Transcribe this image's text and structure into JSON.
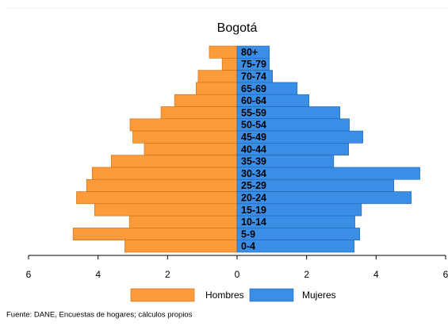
{
  "chart_data": {
    "type": "pyramid",
    "title": "Bogotá",
    "categories": [
      "80+",
      "75-79",
      "70-74",
      "65-69",
      "60-64",
      "55-59",
      "50-54",
      "45-49",
      "40-44",
      "35-39",
      "30-34",
      "25-29",
      "20-24",
      "15-19",
      "10-14",
      "5-9",
      "0-4"
    ],
    "series": [
      {
        "name": "Hombres",
        "color": "#fd9a3a",
        "values": [
          -0.8,
          -0.43,
          -1.12,
          -1.18,
          -1.8,
          -2.19,
          -3.08,
          -3.0,
          -2.67,
          -3.62,
          -4.17,
          -4.33,
          -4.62,
          -4.1,
          -3.1,
          -4.72,
          -3.23
        ]
      },
      {
        "name": "Mujeres",
        "color": "#3a8ee6",
        "values": [
          0.93,
          0.93,
          1.02,
          1.73,
          2.07,
          2.96,
          3.23,
          3.62,
          3.21,
          2.78,
          5.26,
          4.51,
          5.01,
          3.58,
          3.39,
          3.53,
          3.37
        ]
      }
    ],
    "xlim": [
      -6,
      6
    ],
    "xticks": [
      {
        "value": -6,
        "label": "6"
      },
      {
        "value": -4,
        "label": "4"
      },
      {
        "value": -2,
        "label": "2"
      },
      0,
      2,
      4,
      6
    ],
    "source": "Fuente: DANE, Encuestas de hogares; cálculos propios"
  }
}
